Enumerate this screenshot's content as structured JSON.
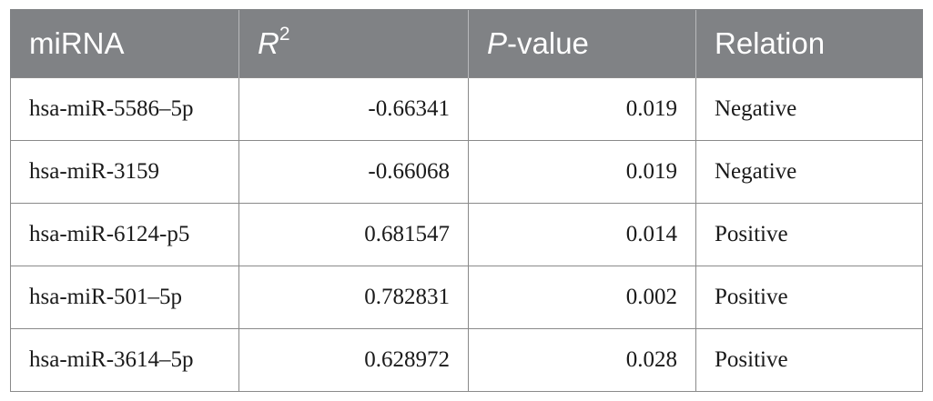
{
  "table": {
    "headers": {
      "mirna": "miRNA",
      "r2_base": "R",
      "r2_sup": "2",
      "p_italic": "P",
      "p_rest": "-value",
      "relation": "Relation"
    },
    "rows": [
      {
        "mirna": "hsa-miR-5586–5p",
        "r2": "-0.66341",
        "p": "0.019",
        "relation": "Negative"
      },
      {
        "mirna": "hsa-miR-3159",
        "r2": "-0.66068",
        "p": "0.019",
        "relation": "Negative"
      },
      {
        "mirna": "hsa-miR-6124-p5",
        "r2": "0.681547",
        "p": "0.014",
        "relation": "Positive"
      },
      {
        "mirna": "hsa-miR-501–5p",
        "r2": "0.782831",
        "p": "0.002",
        "relation": "Positive"
      },
      {
        "mirna": "hsa-miR-3614–5p",
        "r2": "0.628972",
        "p": "0.028",
        "relation": "Positive"
      }
    ]
  }
}
